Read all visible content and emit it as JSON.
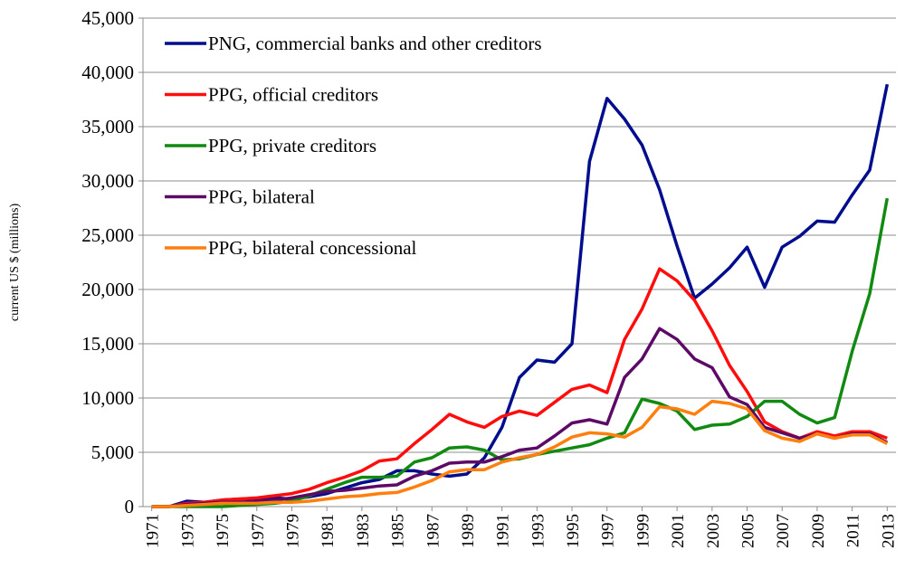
{
  "chart_data": {
    "type": "line",
    "y_label": "current US $ (millions)",
    "x": [
      1971,
      1972,
      1973,
      1974,
      1975,
      1976,
      1977,
      1978,
      1979,
      1980,
      1981,
      1982,
      1983,
      1984,
      1985,
      1986,
      1987,
      1988,
      1989,
      1990,
      1991,
      1992,
      1993,
      1994,
      1995,
      1996,
      1997,
      1998,
      1999,
      2000,
      2001,
      2002,
      2003,
      2004,
      2005,
      2006,
      2007,
      2008,
      2009,
      2010,
      2011,
      2012,
      2013
    ],
    "xlim": [
      1970.5,
      2013.5
    ],
    "xticks": [
      1971,
      1973,
      1975,
      1977,
      1979,
      1981,
      1983,
      1985,
      1987,
      1989,
      1991,
      1993,
      1995,
      1997,
      1999,
      2001,
      2003,
      2005,
      2007,
      2009,
      2011,
      2013
    ],
    "ylim": [
      0,
      45000
    ],
    "yticks": [
      0,
      {
        "value": 5000,
        "label": "5,000"
      },
      {
        "value": 10000,
        "label": "10,000"
      },
      {
        "value": 15000,
        "label": "15,000"
      },
      {
        "value": 20000,
        "label": "20,000"
      },
      {
        "value": 25000,
        "label": "25,000"
      },
      {
        "value": 30000,
        "label": "30,000"
      },
      {
        "value": 35000,
        "label": "35,000"
      },
      {
        "value": 40000,
        "label": "40,000"
      },
      {
        "value": 45000,
        "label": "45,000"
      }
    ],
    "grid": true,
    "legend": "upper left",
    "series": [
      {
        "name": "PNG, commercial banks and other creditors",
        "color": "#000d8c",
        "values": [
          0,
          0,
          500,
          400,
          600,
          700,
          750,
          800,
          700,
          900,
          1200,
          1700,
          2200,
          2500,
          3300,
          3300,
          3000,
          2800,
          3000,
          4500,
          7300,
          11900,
          13500,
          13300,
          15000,
          31800,
          37600,
          35700,
          33300,
          29200,
          24000,
          19200,
          20500,
          22000,
          23900,
          20200,
          23900,
          24900,
          26300,
          26200,
          28700,
          31000,
          38900
        ]
      },
      {
        "name": "PPG, official creditors",
        "color": "#ff0d0d",
        "values": [
          0,
          0,
          300,
          400,
          600,
          700,
          800,
          1000,
          1200,
          1600,
          2200,
          2700,
          3300,
          4200,
          4400,
          5800,
          7100,
          8500,
          7800,
          7300,
          8300,
          8800,
          8400,
          9600,
          10800,
          11200,
          10500,
          15400,
          18200,
          21900,
          20800,
          19000,
          16200,
          13000,
          10600,
          7800,
          6900,
          6300,
          6900,
          6500,
          6900,
          6900,
          6300
        ]
      },
      {
        "name": "PPG, private creditors",
        "color": "#118a11",
        "values": [
          0,
          0,
          0,
          0,
          0,
          100,
          200,
          300,
          500,
          1000,
          1600,
          2200,
          2700,
          2700,
          2800,
          4100,
          4500,
          5400,
          5500,
          5200,
          4300,
          4400,
          4800,
          5100,
          5400,
          5700,
          6300,
          6800,
          9900,
          9500,
          8800,
          7100,
          7500,
          7600,
          8300,
          9700,
          9700,
          8500,
          7700,
          8200,
          14300,
          19600,
          28400
        ]
      },
      {
        "name": "PPG, bilateral",
        "color": "#5c0a66",
        "values": [
          0,
          0,
          200,
          300,
          400,
          400,
          500,
          600,
          800,
          1100,
          1400,
          1500,
          1700,
          1900,
          2000,
          2800,
          3300,
          4000,
          4100,
          4100,
          4600,
          5200,
          5400,
          6500,
          7700,
          8000,
          7600,
          11900,
          13600,
          16400,
          15400,
          13600,
          12800,
          10100,
          9400,
          7300,
          6800,
          6300,
          6700,
          6300,
          6700,
          6700,
          5900
        ]
      },
      {
        "name": "PPG, bilateral concessional",
        "color": "#ff7f0e",
        "values": [
          0,
          0,
          100,
          200,
          300,
          300,
          300,
          400,
          400,
          500,
          700,
          900,
          1000,
          1200,
          1300,
          1800,
          2400,
          3200,
          3400,
          3400,
          4100,
          4500,
          4800,
          5500,
          6400,
          6800,
          6700,
          6400,
          7300,
          9200,
          9000,
          8500,
          9700,
          9500,
          9000,
          7000,
          6300,
          6000,
          6700,
          6300,
          6600,
          6600,
          5800
        ]
      }
    ]
  }
}
